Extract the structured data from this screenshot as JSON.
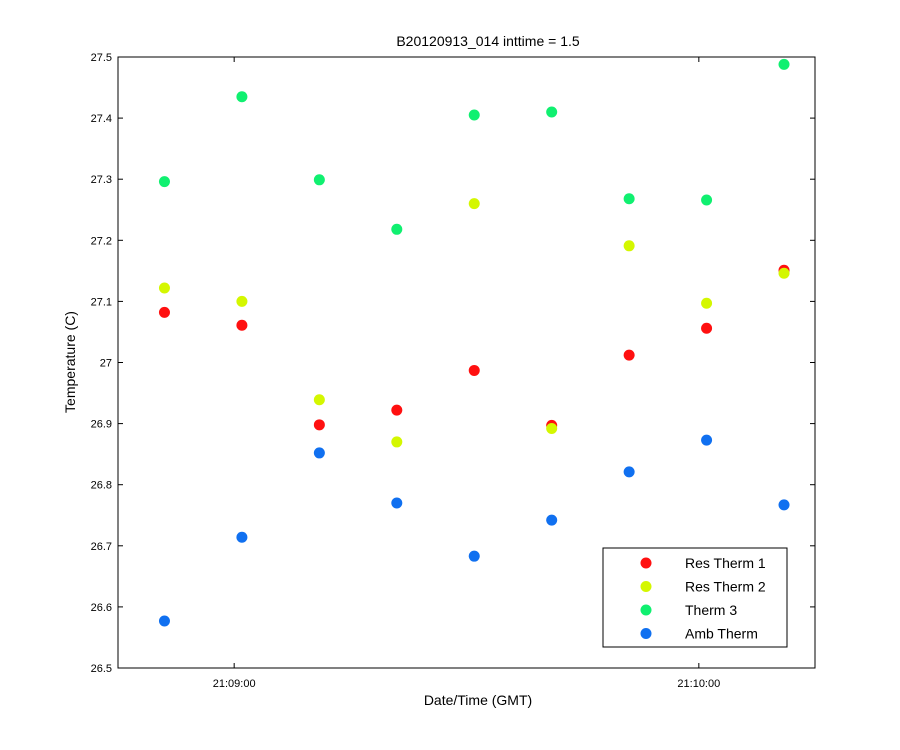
{
  "chart_data": {
    "type": "scatter",
    "title": "B20120913_014 inttime = 1.5",
    "xlabel": "Date/Time (GMT)",
    "ylabel": "Temperature (C)",
    "x_tick_labels": [
      "21:09:00",
      "21:10:00"
    ],
    "x_tick_seconds": [
      0,
      60
    ],
    "y_tick_labels": [
      "26.5",
      "26.6",
      "26.7",
      "26.8",
      "26.9",
      "27",
      "27.1",
      "27.2",
      "27.3",
      "27.4",
      "27.5"
    ],
    "x_range_seconds": [
      -15,
      75
    ],
    "ylim": [
      26.5,
      27.5
    ],
    "x_seconds_after_21_09_00": [
      -9,
      1,
      11,
      21,
      31,
      41,
      51,
      61,
      71
    ],
    "series": [
      {
        "name": "Res Therm 1",
        "color": "#ff1010",
        "values": [
          27.082,
          27.061,
          26.898,
          26.922,
          26.987,
          26.897,
          27.012,
          27.056,
          27.151
        ]
      },
      {
        "name": "Res Therm 2",
        "color": "#d4f700",
        "values": [
          27.122,
          27.1,
          26.939,
          26.87,
          27.26,
          26.892,
          27.191,
          27.097,
          27.146
        ]
      },
      {
        "name": "Therm 3",
        "color": "#10f070",
        "values": [
          27.296,
          27.435,
          27.299,
          27.218,
          27.405,
          27.41,
          27.268,
          27.266,
          27.488
        ]
      },
      {
        "name": "Amb Therm",
        "color": "#1070f0",
        "values": [
          26.577,
          26.714,
          26.852,
          26.77,
          26.683,
          26.742,
          26.821,
          26.873,
          26.767
        ]
      }
    ],
    "grid": false,
    "legend_position": "bottom-right"
  }
}
